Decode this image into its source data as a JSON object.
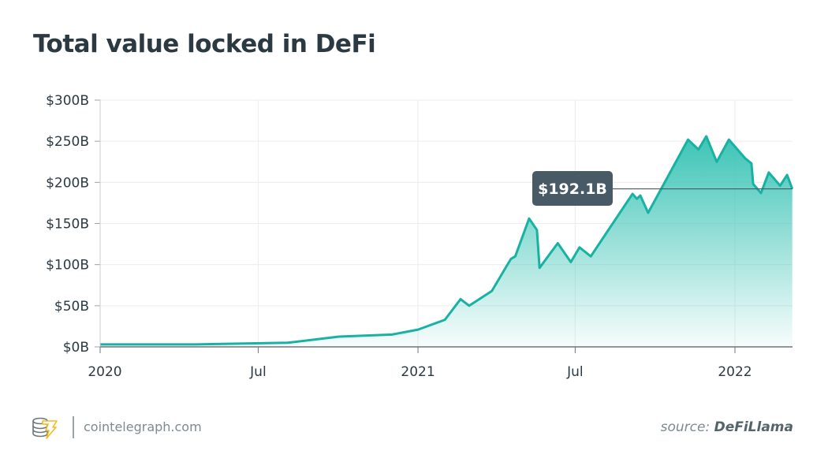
{
  "title": "Total value locked in DeFi",
  "footer": {
    "site": "cointelegraph.com",
    "source_prefix": "source:",
    "source_name": "DeFiLlama",
    "logo_icon": "cointelegraph-coins-bolt-icon"
  },
  "colors": {
    "line": "#17b2a3",
    "fill_top": "#3cc4b6",
    "text": "#2b3a42",
    "callout_bg": "#475a66"
  },
  "chart_data": {
    "type": "area",
    "title": "Total value locked in DeFi",
    "xlabel": "",
    "ylabel": "",
    "ylim": [
      0,
      300
    ],
    "xlim": [
      "2020-01-01",
      "2022-03-08"
    ],
    "grid": true,
    "y_ticks": [
      {
        "v": 0,
        "label": "$0B"
      },
      {
        "v": 50,
        "label": "$50B"
      },
      {
        "v": 100,
        "label": "$100B"
      },
      {
        "v": 150,
        "label": "$150B"
      },
      {
        "v": 200,
        "label": "$200B"
      },
      {
        "v": 250,
        "label": "$250B"
      },
      {
        "v": 300,
        "label": "$300B"
      }
    ],
    "x_ticks": [
      {
        "d": "2020-01-01",
        "label": "2020"
      },
      {
        "d": "2020-07-01",
        "label": "Jul"
      },
      {
        "d": "2021-01-01",
        "label": "2021"
      },
      {
        "d": "2021-07-01",
        "label": "Jul"
      },
      {
        "d": "2022-01-01",
        "label": "2022"
      }
    ],
    "annotation": {
      "label": "$192.1B",
      "value": 192.1
    },
    "x": [
      "2020-01-01",
      "2020-04-20",
      "2020-08-04",
      "2020-10-02",
      "2020-12-02",
      "2021-01-01",
      "2021-02-01",
      "2021-02-19",
      "2021-03-01",
      "2021-03-27",
      "2021-04-18",
      "2021-04-23",
      "2021-05-09",
      "2021-05-18",
      "2021-05-21",
      "2021-06-11",
      "2021-06-26",
      "2021-07-06",
      "2021-07-19",
      "2021-09-05",
      "2021-09-10",
      "2021-09-14",
      "2021-09-23",
      "2021-11-08",
      "2021-11-20",
      "2021-11-29",
      "2021-12-11",
      "2021-12-25",
      "2022-01-13",
      "2022-01-20",
      "2022-01-22",
      "2022-01-31",
      "2022-02-09",
      "2022-02-22",
      "2022-03-02",
      "2022-03-08"
    ],
    "values": [
      3,
      3,
      5,
      12.5,
      15,
      21,
      33,
      58,
      50,
      68,
      107,
      110,
      156,
      142,
      96,
      126,
      103,
      121,
      110,
      186,
      180,
      184,
      163,
      252,
      240,
      256,
      225,
      252,
      229,
      223,
      198,
      187,
      212,
      196,
      209,
      192.1
    ]
  }
}
